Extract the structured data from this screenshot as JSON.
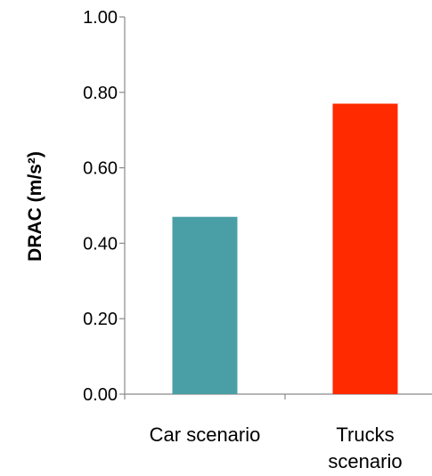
{
  "chart_data": {
    "type": "bar",
    "title": "",
    "xlabel": "",
    "ylabel": "DRAC (m/s²)",
    "categories": [
      [
        "Car scenario"
      ],
      [
        "Trucks",
        "scenario"
      ]
    ],
    "values": [
      0.47,
      0.77
    ],
    "bar_colors": [
      "#4A9FA6",
      "#FF2A00"
    ],
    "ylim": [
      0,
      1.0
    ],
    "yticks": [
      "0.00",
      "0.20",
      "0.40",
      "0.60",
      "0.80",
      "1.00"
    ],
    "grid": false,
    "legend": "none"
  }
}
